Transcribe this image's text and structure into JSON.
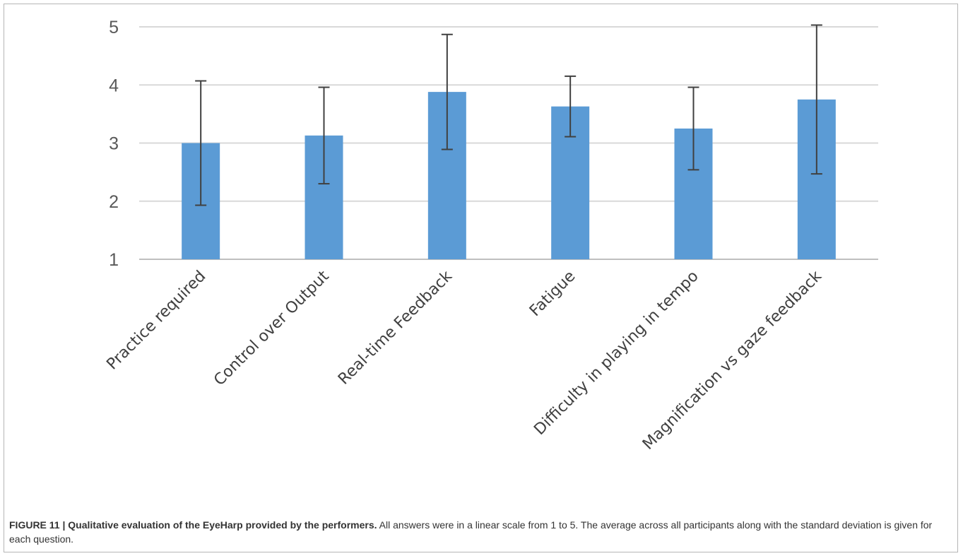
{
  "caption": {
    "figure_label": "FIGURE 11 | Qualitative evaluation of the EyeHarp provided by the performers.",
    "text": " All answers were in a linear scale from 1 to 5. The average across all participants along with the standard deviation is given for each question."
  },
  "chart_data": {
    "type": "bar",
    "categories": [
      "Practice required",
      "Control over Output",
      "Real-time Feedback",
      "Fatigue",
      "Difficulty in playing in tempo",
      "Magnification vs  gaze feedback"
    ],
    "values": [
      3.0,
      3.13,
      3.88,
      3.63,
      3.25,
      3.75
    ],
    "error": [
      1.07,
      0.83,
      0.99,
      0.52,
      0.71,
      1.28
    ],
    "ylim": [
      1,
      5
    ],
    "yticks": [
      1,
      2,
      3,
      4,
      5
    ],
    "grid": true,
    "title": "",
    "xlabel": "",
    "ylabel": "",
    "colors": {
      "bar": "#5b9bd5",
      "error": "#404040",
      "grid": "#d9d9d9",
      "axis": "#bfbfbf"
    }
  }
}
